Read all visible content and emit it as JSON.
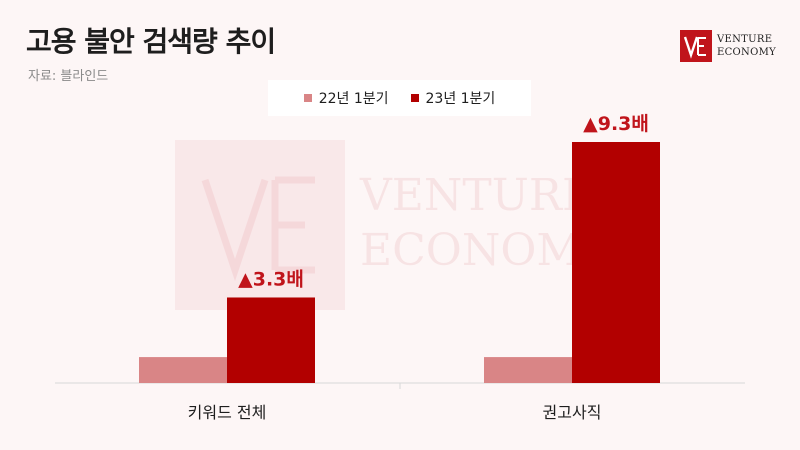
{
  "header": {
    "title": "고용 불안 검색량 추이",
    "source": "자료: 블라인드"
  },
  "brand": {
    "logo_line1": "VENTURE",
    "logo_line2": "ECONOMY",
    "watermark_line1": "VENTURE",
    "watermark_line2": "ECONOMY",
    "accent": "#c0141b"
  },
  "chart_data": {
    "type": "bar",
    "categories": [
      "키워드 전체",
      "권고사직"
    ],
    "series": [
      {
        "name": "22년 1분기",
        "color": "#d98586",
        "values": [
          1,
          1
        ]
      },
      {
        "name": "23년 1분기",
        "color": "#b20000",
        "values": [
          3.3,
          9.3
        ]
      }
    ],
    "annotations": [
      "▲3.3배",
      "▲9.3배"
    ],
    "ylim": [
      0,
      10
    ],
    "grid": false,
    "legend": "top-center"
  }
}
